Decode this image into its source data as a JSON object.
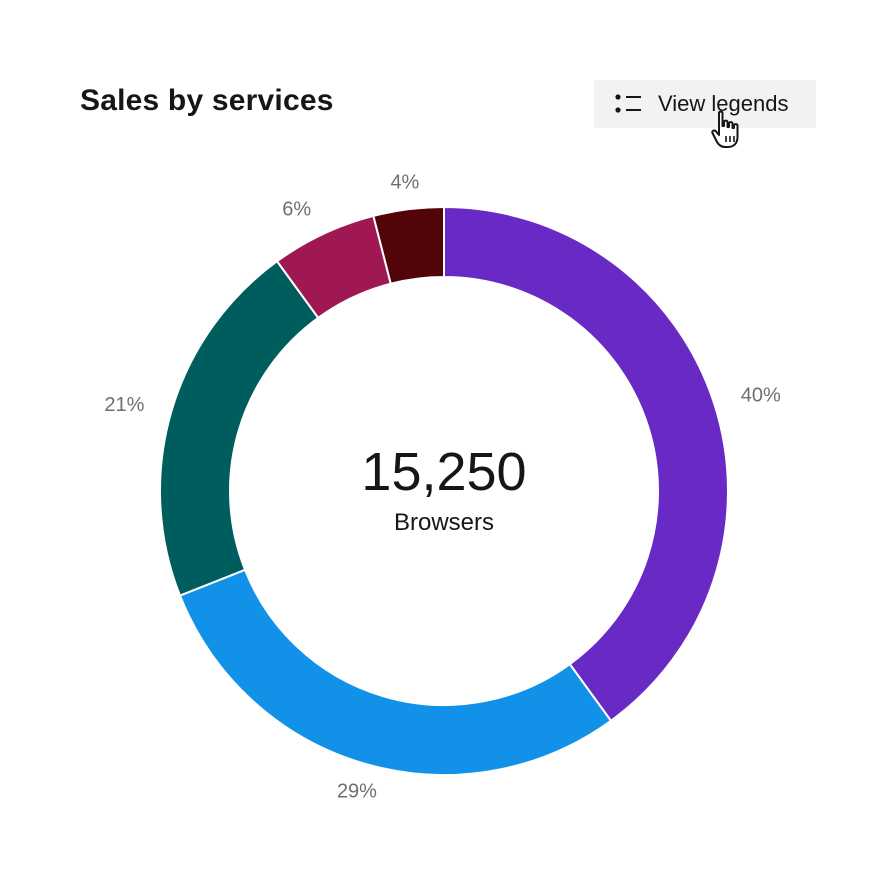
{
  "chart_data": {
    "type": "pie",
    "variant": "donut",
    "title": "Sales by services",
    "center_value": "15,250",
    "center_label": "Browsers",
    "slice_order": "clockwise from top",
    "slices": [
      {
        "value": 40,
        "label": "40%",
        "color": "#6929c4"
      },
      {
        "value": 29,
        "label": "29%",
        "color": "#1192e8"
      },
      {
        "value": 21,
        "label": "21%",
        "color": "#005d5d"
      },
      {
        "value": 6,
        "label": "6%",
        "color": "#9f1853"
      },
      {
        "value": 4,
        "label": "4%",
        "color": "#520408"
      }
    ],
    "legend": "hidden"
  },
  "toolbar": {
    "legend_button_label": "View legends",
    "legend_button_icon": "list-icon"
  },
  "cursor": {
    "icon": "pointer-hand-icon"
  }
}
